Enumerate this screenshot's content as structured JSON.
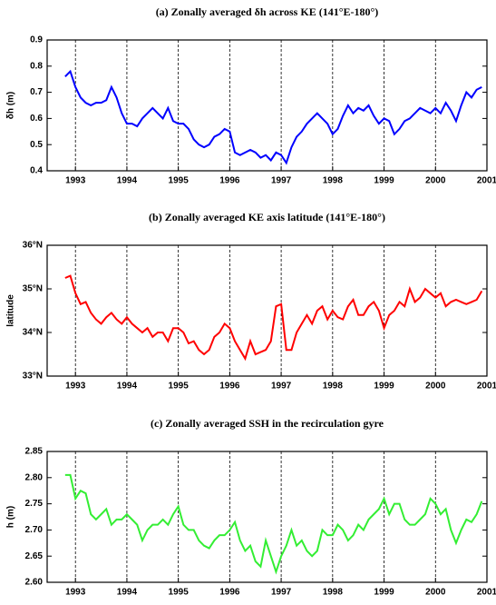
{
  "chart_data": [
    {
      "type": "line",
      "title": "(a) Zonally averaged δh across KE (141°E-180°)",
      "y_label": "δh (m)",
      "color": "#0000ff",
      "xgrid": true,
      "x": [
        1992.8,
        1992.9,
        1993.0,
        1993.1,
        1993.2,
        1993.3,
        1993.4,
        1993.5,
        1993.6,
        1993.7,
        1993.8,
        1993.9,
        1994.0,
        1994.1,
        1994.2,
        1994.3,
        1994.4,
        1994.5,
        1994.6,
        1994.7,
        1994.8,
        1994.9,
        1995.0,
        1995.1,
        1995.2,
        1995.3,
        1995.4,
        1995.5,
        1995.6,
        1995.7,
        1995.8,
        1995.9,
        1996.0,
        1996.1,
        1996.2,
        1996.3,
        1996.4,
        1996.5,
        1996.6,
        1996.7,
        1996.8,
        1996.9,
        1997.0,
        1997.1,
        1997.2,
        1997.3,
        1997.4,
        1997.5,
        1997.6,
        1997.7,
        1997.8,
        1997.9,
        1998.0,
        1998.1,
        1998.2,
        1998.3,
        1998.4,
        1998.5,
        1998.6,
        1998.7,
        1998.8,
        1998.9,
        1999.0,
        1999.1,
        1999.2,
        1999.3,
        1999.4,
        1999.5,
        1999.6,
        1999.7,
        1999.8,
        1999.9,
        2000.0,
        2000.1,
        2000.2,
        2000.3,
        2000.4,
        2000.5,
        2000.6,
        2000.7,
        2000.8,
        2000.9
      ],
      "values": [
        0.76,
        0.78,
        0.72,
        0.68,
        0.66,
        0.65,
        0.66,
        0.66,
        0.67,
        0.72,
        0.68,
        0.62,
        0.58,
        0.58,
        0.57,
        0.6,
        0.62,
        0.64,
        0.62,
        0.6,
        0.64,
        0.59,
        0.58,
        0.58,
        0.56,
        0.52,
        0.5,
        0.49,
        0.5,
        0.53,
        0.54,
        0.56,
        0.55,
        0.47,
        0.46,
        0.47,
        0.48,
        0.47,
        0.45,
        0.46,
        0.44,
        0.47,
        0.46,
        0.43,
        0.49,
        0.53,
        0.55,
        0.58,
        0.6,
        0.62,
        0.6,
        0.58,
        0.54,
        0.56,
        0.61,
        0.65,
        0.62,
        0.64,
        0.63,
        0.65,
        0.61,
        0.58,
        0.6,
        0.59,
        0.54,
        0.56,
        0.59,
        0.6,
        0.62,
        0.64,
        0.63,
        0.62,
        0.64,
        0.62,
        0.66,
        0.63,
        0.59,
        0.65,
        0.7,
        0.68,
        0.71,
        0.72
      ],
      "xlim": [
        1992.45,
        2001
      ],
      "xticks": [
        1993,
        1994,
        1995,
        1996,
        1997,
        1998,
        1999,
        2000,
        2001
      ],
      "ylim": [
        0.4,
        0.9
      ],
      "yticks": [
        0.4,
        0.5,
        0.6,
        0.7,
        0.8,
        0.9
      ]
    },
    {
      "type": "line",
      "title": "(b) Zonally averaged KE axis latitude (141°E-180°)",
      "y_label": "latitude",
      "color": "#ff0000",
      "xgrid": true,
      "x": [
        1992.8,
        1992.9,
        1993.0,
        1993.1,
        1993.2,
        1993.3,
        1993.4,
        1993.5,
        1993.6,
        1993.7,
        1993.8,
        1993.9,
        1994.0,
        1994.1,
        1994.2,
        1994.3,
        1994.4,
        1994.5,
        1994.6,
        1994.7,
        1994.8,
        1994.9,
        1995.0,
        1995.1,
        1995.2,
        1995.3,
        1995.4,
        1995.5,
        1995.6,
        1995.7,
        1995.8,
        1995.9,
        1996.0,
        1996.1,
        1996.2,
        1996.3,
        1996.4,
        1996.5,
        1996.6,
        1996.7,
        1996.8,
        1996.9,
        1997.0,
        1997.1,
        1997.2,
        1997.3,
        1997.4,
        1997.5,
        1997.6,
        1997.7,
        1997.8,
        1997.9,
        1998.0,
        1998.1,
        1998.2,
        1998.3,
        1998.4,
        1998.5,
        1998.6,
        1998.7,
        1998.8,
        1998.9,
        1999.0,
        1999.1,
        1999.2,
        1999.3,
        1999.4,
        1999.5,
        1999.6,
        1999.7,
        1999.8,
        1999.9,
        2000.0,
        2000.1,
        2000.2,
        2000.3,
        2000.4,
        2000.5,
        2000.6,
        2000.7,
        2000.8,
        2000.9
      ],
      "values": [
        35.25,
        35.3,
        34.9,
        34.65,
        34.7,
        34.45,
        34.3,
        34.2,
        34.35,
        34.45,
        34.3,
        34.2,
        34.35,
        34.2,
        34.1,
        34.0,
        34.1,
        33.9,
        34.0,
        34.0,
        33.8,
        34.1,
        34.1,
        34.0,
        33.75,
        33.8,
        33.6,
        33.5,
        33.6,
        33.9,
        34.0,
        34.2,
        34.1,
        33.8,
        33.6,
        33.4,
        33.8,
        33.5,
        33.55,
        33.6,
        33.8,
        34.6,
        34.65,
        33.6,
        33.6,
        34.0,
        34.2,
        34.4,
        34.2,
        34.5,
        34.6,
        34.3,
        34.5,
        34.35,
        34.3,
        34.6,
        34.75,
        34.4,
        34.4,
        34.6,
        34.7,
        34.5,
        34.1,
        34.4,
        34.5,
        34.7,
        34.6,
        35.0,
        34.7,
        34.8,
        35.0,
        34.9,
        34.8,
        34.9,
        34.6,
        34.7,
        34.75,
        34.7,
        34.65,
        34.7,
        34.75,
        34.95
      ],
      "xlim": [
        1992.45,
        2001
      ],
      "xticks": [
        1993,
        1994,
        1995,
        1996,
        1997,
        1998,
        1999,
        2000,
        2001
      ],
      "ylim": [
        33,
        36
      ],
      "yticks": [
        {
          "value": 33,
          "label": "33°N"
        },
        {
          "value": 34,
          "label": "34°N"
        },
        {
          "value": 35,
          "label": "35°N"
        },
        {
          "value": 36,
          "label": "36°N"
        }
      ]
    },
    {
      "type": "line",
      "title": "(c) Zonally averaged SSH in the recirculation gyre",
      "y_label": "h (m)",
      "color": "#33ee33",
      "xgrid": true,
      "x": [
        1992.8,
        1992.9,
        1993.0,
        1993.1,
        1993.2,
        1993.3,
        1993.4,
        1993.5,
        1993.6,
        1993.7,
        1993.8,
        1993.9,
        1994.0,
        1994.1,
        1994.2,
        1994.3,
        1994.4,
        1994.5,
        1994.6,
        1994.7,
        1994.8,
        1994.9,
        1995.0,
        1995.1,
        1995.2,
        1995.3,
        1995.4,
        1995.5,
        1995.6,
        1995.7,
        1995.8,
        1995.9,
        1996.0,
        1996.1,
        1996.2,
        1996.3,
        1996.4,
        1996.5,
        1996.6,
        1996.7,
        1996.8,
        1996.9,
        1997.0,
        1997.1,
        1997.2,
        1997.3,
        1997.4,
        1997.5,
        1997.6,
        1997.7,
        1997.8,
        1997.9,
        1998.0,
        1998.1,
        1998.2,
        1998.3,
        1998.4,
        1998.5,
        1998.6,
        1998.7,
        1998.8,
        1998.9,
        1999.0,
        1999.1,
        1999.2,
        1999.3,
        1999.4,
        1999.5,
        1999.6,
        1999.7,
        1999.8,
        1999.9,
        2000.0,
        2000.1,
        2000.2,
        2000.3,
        2000.4,
        2000.5,
        2000.6,
        2000.7,
        2000.8,
        2000.9
      ],
      "values": [
        2.805,
        2.805,
        2.76,
        2.775,
        2.77,
        2.73,
        2.72,
        2.73,
        2.74,
        2.71,
        2.72,
        2.72,
        2.73,
        2.72,
        2.71,
        2.68,
        2.7,
        2.71,
        2.71,
        2.72,
        2.71,
        2.73,
        2.745,
        2.71,
        2.7,
        2.7,
        2.68,
        2.67,
        2.665,
        2.68,
        2.69,
        2.69,
        2.7,
        2.715,
        2.68,
        2.66,
        2.67,
        2.64,
        2.63,
        2.68,
        2.65,
        2.62,
        2.65,
        2.67,
        2.7,
        2.67,
        2.68,
        2.66,
        2.65,
        2.66,
        2.7,
        2.69,
        2.69,
        2.71,
        2.7,
        2.68,
        2.69,
        2.71,
        2.7,
        2.72,
        2.73,
        2.74,
        2.76,
        2.73,
        2.75,
        2.75,
        2.72,
        2.71,
        2.71,
        2.72,
        2.73,
        2.76,
        2.75,
        2.73,
        2.74,
        2.7,
        2.675,
        2.7,
        2.72,
        2.715,
        2.73,
        2.755
      ],
      "xlim": [
        1992.45,
        2001
      ],
      "xticks": [
        1993,
        1994,
        1995,
        1996,
        1997,
        1998,
        1999,
        2000,
        2001
      ],
      "ylim": [
        2.6,
        2.85
      ],
      "yticks": [
        {
          "value": 2.6,
          "label": "2.60"
        },
        2.65,
        {
          "value": 2.7,
          "label": "2.70"
        },
        2.75,
        {
          "value": 2.8,
          "label": "2.80"
        },
        2.85
      ]
    }
  ]
}
